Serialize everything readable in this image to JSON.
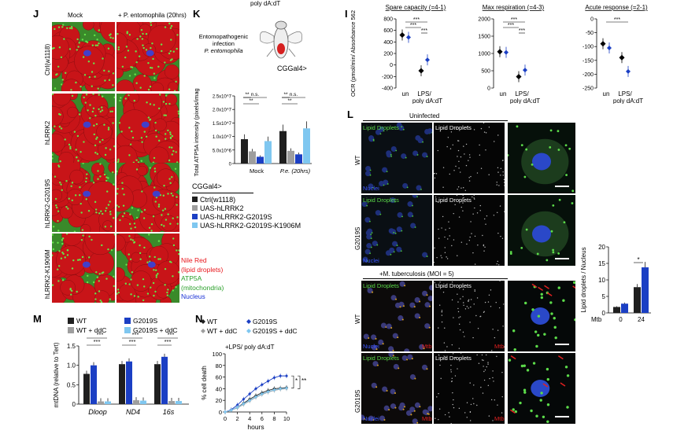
{
  "panel_letters": {
    "J": "J",
    "K": "K",
    "I": "I",
    "L": "L",
    "M": "M",
    "N": "N"
  },
  "top_fragment": "poly dA:dT",
  "J": {
    "col_headers": [
      "Mock",
      "+ P. entomophila (20hrs)"
    ],
    "row_labels": [
      "Ctrl(w1118)",
      "hLRRK2",
      "hLRRK2-G2019S",
      "hLRRK2-K1906M"
    ],
    "legend": [
      {
        "text": "Nile Red",
        "color": "#e8171c"
      },
      {
        "text": "(lipid droplets)",
        "color": "#e8171c"
      },
      {
        "text": "ATP5A",
        "color": "#2aa02a"
      },
      {
        "text": "(mitochondria)",
        "color": "#2aa02a"
      },
      {
        "text": "Nucleus",
        "color": "#1b33d6"
      }
    ]
  },
  "K_top": {
    "infection_lines": [
      "Entomopathogenic",
      "infection",
      "P. entomophila"
    ],
    "driver": "CGGal4>"
  },
  "I_labels": {
    "titles": [
      "Spare capacity (=4-1)",
      "Max respiration (=4-3)",
      "Acute response (=2-1)"
    ],
    "ylabel": "OCR (pmol/min/ Absorbance 562",
    "yticks_a": [
      "800",
      "600",
      "400",
      "200",
      "0",
      "-200",
      "-400"
    ],
    "yticks_b": [
      "2000",
      "1500",
      "1000",
      "500",
      "0"
    ],
    "yticks_c": [
      "0",
      "-50",
      "-100",
      "-150",
      "-200",
      "-250"
    ],
    "xcats": [
      "un",
      "LPS/",
      "poly dA:dT"
    ],
    "stars": "***"
  },
  "L": {
    "uninfected": "Uninfected",
    "infected": "+M. tuberculosis (MOI = 5)",
    "lipid_droplets": "Lipid Droplets",
    "nuclei": "Nuclei",
    "mtb": "Mtb",
    "rows": [
      "WT",
      "G2019S",
      "WT",
      "G2019S"
    ]
  },
  "chart_data": [
    {
      "id": "K",
      "type": "bar",
      "title": "",
      "ylabel": "Total ATP5A intensity (pixels/image)",
      "yticks": [
        "2.5x10^7",
        "2.0x10^7",
        "1.5x10^7",
        "1.0x10^7",
        "5.0x10^6",
        "0"
      ],
      "ylim": [
        0,
        25000000
      ],
      "categories": [
        "Mock",
        "P.e. (20hrs)"
      ],
      "series": [
        {
          "name": "Ctrl(w1118)",
          "color": "#1f1f1f",
          "values": [
            9000000,
            12000000
          ]
        },
        {
          "name": "UAS-hLRRK2",
          "color": "#9e9e9e",
          "values": [
            4500000,
            4700000
          ]
        },
        {
          "name": "UAS-hLRRK2-G2019S",
          "color": "#1b3fc4",
          "values": [
            2500000,
            3400000
          ]
        },
        {
          "name": "UAS-hLRRK2-G2019S-K1906M",
          "color": "#7fc7f0",
          "values": [
            8300000,
            13000000
          ]
        }
      ],
      "significance": [
        "**",
        "**",
        "n.s.",
        "**",
        "**",
        "n.s."
      ],
      "legend_title": "CGGal4>",
      "legend_entries": [
        "Ctrl(w1118)",
        "UAS-hLRRK2",
        "UAS-hLRRK2-G2019S",
        "UAS-hLRRK2-G2019S-K1906M"
      ]
    },
    {
      "id": "I-spare",
      "type": "scatter",
      "title": "Spare capacity (=4-1)",
      "ylim": [
        -400,
        800
      ],
      "categories": [
        "un",
        "LPS/ poly dA:dT"
      ],
      "series": [
        {
          "name": "",
          "color": "#000000",
          "values": [
            520,
            -100
          ]
        },
        {
          "name": "",
          "color": "#1b3fc4",
          "values": [
            480,
            90
          ]
        }
      ]
    },
    {
      "id": "I-max",
      "type": "scatter",
      "title": "Max respiration (=4-3)",
      "ylim": [
        0,
        2000
      ],
      "categories": [
        "un",
        "LPS/ poly dA:dT"
      ],
      "series": [
        {
          "name": "",
          "color": "#000000",
          "values": [
            1050,
            330
          ]
        },
        {
          "name": "",
          "color": "#1b3fc4",
          "values": [
            1030,
            520
          ]
        }
      ]
    },
    {
      "id": "I-acute",
      "type": "scatter",
      "title": "Acute response (=2-1)",
      "ylim": [
        -250,
        0
      ],
      "categories": [
        "un",
        "LPS/ poly dA:dT"
      ],
      "series": [
        {
          "name": "",
          "color": "#000000",
          "values": [
            -90,
            -140
          ]
        },
        {
          "name": "",
          "color": "#1b3fc4",
          "values": [
            -105,
            -190
          ]
        }
      ]
    },
    {
      "id": "L-bar",
      "type": "bar",
      "ylabel": "Lipid droplets / Nucleus",
      "yticks": [
        "20",
        "15",
        "10",
        "5",
        "0"
      ],
      "ylim": [
        0,
        20
      ],
      "xlabel": "Mtb",
      "categories": [
        "0",
        "24"
      ],
      "series": [
        {
          "name": "",
          "color": "#1f1f1f",
          "values": [
            1.8,
            7.8
          ]
        },
        {
          "name": "",
          "color": "#1b3fc4",
          "values": [
            2.8,
            13.8
          ]
        }
      ],
      "significance": [
        "*"
      ]
    },
    {
      "id": "M",
      "type": "bar",
      "ylabel": "mtDNA (relative to Tert)",
      "yticks": [
        "1.5",
        "1.0",
        "0.5",
        "0"
      ],
      "ylim": [
        0,
        1.5
      ],
      "categories": [
        "Dloop",
        "ND4",
        "16s"
      ],
      "series": [
        {
          "name": "WT",
          "color": "#1f1f1f",
          "values": [
            0.78,
            1.03,
            1.03
          ]
        },
        {
          "name": "G2019S",
          "color": "#1b3fc4",
          "values": [
            1.0,
            1.1,
            1.22
          ]
        },
        {
          "name": "WT + ddC",
          "color": "#9e9e9e",
          "values": [
            0.07,
            0.1,
            0.08
          ]
        },
        {
          "name": "G2019S + ddC",
          "color": "#7fc7f0",
          "values": [
            0.07,
            0.09,
            0.08
          ]
        }
      ],
      "significance": [
        "***",
        "***",
        "***",
        "***",
        "***",
        "***"
      ]
    },
    {
      "id": "N",
      "type": "line",
      "xlabel": "hours",
      "ylabel": "% cell death",
      "annotation": "+LPS/ poly dA:dT",
      "xticks": [
        "0",
        "2",
        "4",
        "6",
        "8",
        "10"
      ],
      "yticks": [
        "100",
        "80",
        "60",
        "40",
        "20",
        "0"
      ],
      "xlim": [
        0,
        10
      ],
      "ylim": [
        0,
        100
      ],
      "x": [
        0,
        1,
        2,
        3,
        4,
        5,
        6,
        7,
        8,
        9,
        10
      ],
      "series": [
        {
          "name": "WT",
          "color": "#1f1f1f",
          "values": [
            0,
            3,
            8,
            15,
            22,
            28,
            33,
            37,
            40,
            41,
            42
          ]
        },
        {
          "name": "G2019S",
          "color": "#1b3fc4",
          "values": [
            0,
            4,
            12,
            22,
            31,
            40,
            47,
            53,
            59,
            62,
            62
          ]
        },
        {
          "name": "WT + ddC",
          "color": "#9e9e9e",
          "values": [
            0,
            3,
            7,
            13,
            19,
            25,
            30,
            34,
            37,
            39,
            40
          ]
        },
        {
          "name": "G2019S + ddC",
          "color": "#7fc7f0",
          "values": [
            0,
            3,
            8,
            14,
            20,
            26,
            31,
            35,
            38,
            40,
            41
          ]
        }
      ],
      "significance": [
        "*",
        "**"
      ]
    }
  ]
}
